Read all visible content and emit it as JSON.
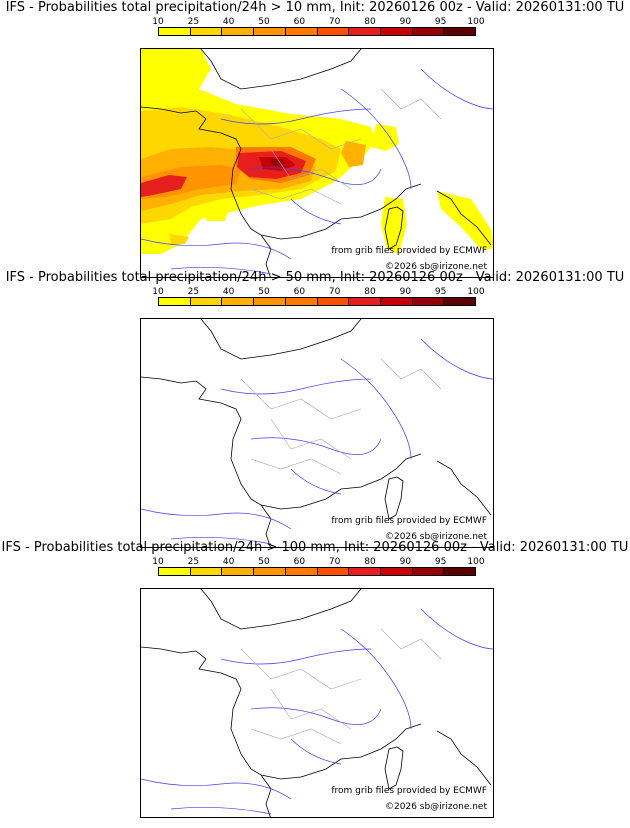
{
  "scale": {
    "labels": [
      "10",
      "25",
      "40",
      "50",
      "60",
      "70",
      "80",
      "90",
      "95",
      "100"
    ],
    "colors": [
      "#ffff00",
      "#ffd700",
      "#ffb000",
      "#ff9400",
      "#ff7800",
      "#ff5000",
      "#e61e1e",
      "#c80000",
      "#960000",
      "#5a0000"
    ]
  },
  "panels": [
    {
      "title": "IFS - Probabilities total precipitation/24h > 10 mm, Init: 20260126 00z - Valid: 20260131:00 TU",
      "threshold_mm": 10,
      "has_precip_field": true,
      "source": "from grib files provided by ECMWF",
      "copyright": "©2026 sb@irizone.net"
    },
    {
      "title": "IFS - Probabilities total precipitation/24h > 50 mm, Init: 20260126 00z - Valid: 20260131:00 TU",
      "threshold_mm": 50,
      "has_precip_field": false,
      "source": "from grib files provided by ECMWF",
      "copyright": "©2026 sb@irizone.net"
    },
    {
      "title": "IFS - Probabilities total precipitation/24h > 100 mm, Init: 20260126 00z - Valid: 20260131:00 TU",
      "threshold_mm": 100,
      "has_precip_field": false,
      "source": "from grib files provided by ECMWF",
      "copyright": "©2026 sb@irizone.net"
    }
  ]
}
